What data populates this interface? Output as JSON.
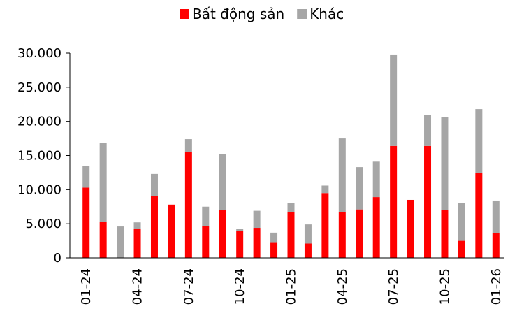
{
  "chart_data": {
    "type": "stacked_bar",
    "categories": [
      "01-24",
      null,
      null,
      "04-24",
      null,
      null,
      "07-24",
      null,
      null,
      "10-24",
      null,
      null,
      "01-25",
      null,
      null,
      "04-25",
      null,
      null,
      "07-25",
      null,
      null,
      "10-25",
      null,
      null,
      "01-26"
    ],
    "series": [
      {
        "name": "Bất động sản",
        "color": "#ff0000",
        "values": [
          10300,
          5300,
          0,
          4200,
          9100,
          7800,
          15500,
          4700,
          7000,
          3900,
          4400,
          2300,
          6700,
          2100,
          9500,
          6700,
          7100,
          8900,
          16400,
          8500,
          16400,
          7000,
          2500,
          12400,
          3600
        ]
      },
      {
        "name": "Khác",
        "color": "#a6a6a6",
        "values": [
          3200,
          11500,
          4600,
          1000,
          3200,
          0,
          1900,
          2800,
          8200,
          300,
          2500,
          1400,
          1300,
          2800,
          1100,
          10800,
          6200,
          5200,
          13400,
          0,
          4500,
          13600,
          5500,
          9400,
          4800
        ]
      }
    ],
    "ylim": [
      0,
      30000
    ],
    "yticks": [
      0,
      {
        "value": 5000,
        "label": "5.000"
      },
      {
        "value": 10000,
        "label": "10.000"
      },
      {
        "value": 15000,
        "label": "15.000"
      },
      {
        "value": 20000,
        "label": "20.000"
      },
      {
        "value": 25000,
        "label": "25.000"
      },
      {
        "value": 30000,
        "label": "30.000"
      }
    ],
    "stacked": true,
    "legend": "top"
  }
}
